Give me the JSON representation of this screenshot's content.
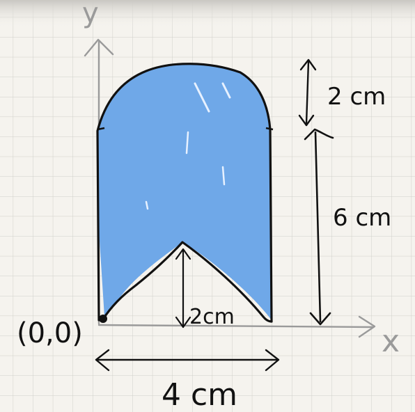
{
  "labels": {
    "y_axis": "y",
    "x_axis": "x",
    "origin": "(0,0)",
    "top_height": "2 cm",
    "rect_height": "6 cm",
    "notch_depth": "2cm",
    "width": "4 cm"
  },
  "colors": {
    "fill": "#6fa8e8",
    "outline": "#111111",
    "axes": "#9a9a9a",
    "grid": "#cfcfc9",
    "background": "#f5f3ee"
  }
}
